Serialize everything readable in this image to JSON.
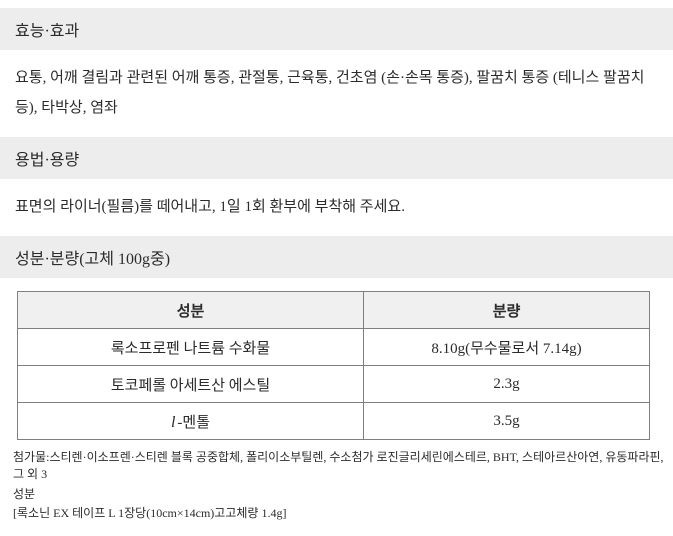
{
  "page": {
    "background": "#ffffff",
    "text_color": "#2b2b2b",
    "band_bg": "#ededed",
    "table_border": "#7f7f7f",
    "table_header_bg": "#f0f0f0"
  },
  "sections": [
    {
      "title": "효능·효과",
      "body": "요통, 어깨 결림과 관련된 어깨 통증, 관절통, 근육통, 건초염 (손·손목 통증), 팔꿈치 통증 (테니스 팔꿈치 등), 타박상, 염좌"
    },
    {
      "title": "용법·용량",
      "body": "표면의 라이너(필름)를 떼어내고, 1일 1회 환부에 부착해 주세요."
    },
    {
      "title": "성분·분량(고체 100g중)"
    }
  ],
  "table": {
    "headers": [
      "성분",
      "분량"
    ],
    "rows": [
      {
        "name": "록소프로펜 나트륨 수화물",
        "amount": "8.10g(무수물로서 7.14g)"
      },
      {
        "name": "토코페롤 아세트산 에스틸",
        "amount": "2.3g"
      },
      {
        "prefix": "l",
        "name": "-멘톨",
        "amount": "3.5g"
      }
    ]
  },
  "footer": {
    "additives": "첨가물:스티렌·이소프렌·스티렌 블록 공중합체, 폴리이소부틸렌, 수소첨가 로진글리세린에스테르, BHT, 스테아르산아연, 유동파라핀, 그 외 3",
    "label": "성분",
    "note": "[록소닌 EX 테이프 L 1장당(10cm×14cm)고고체량 1.4g]"
  }
}
